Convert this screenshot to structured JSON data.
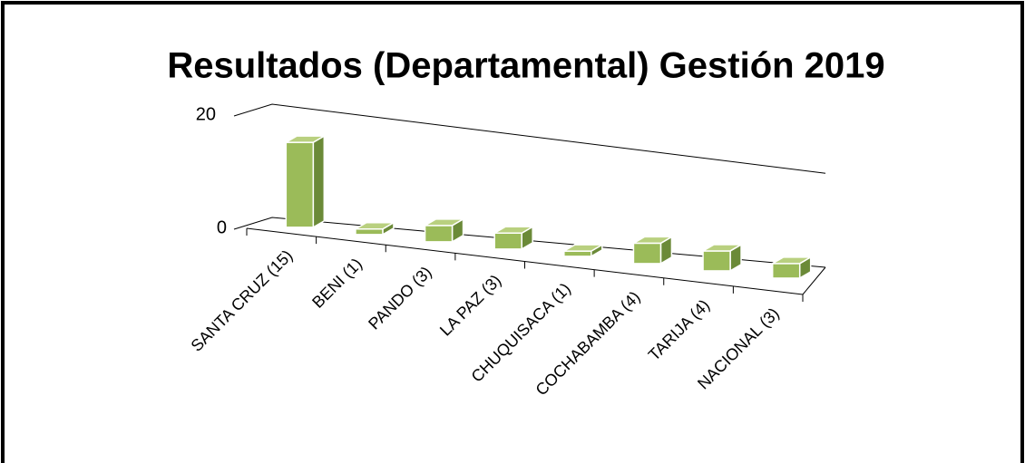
{
  "chart_data": {
    "type": "bar3d",
    "title": "Resultados (Departamental) Gestión 2019",
    "categories": [
      "SANTA CRUZ  (15)",
      "BENI (1)",
      "PANDO (3)",
      "LA PAZ  (3)",
      "CHUQUISACA  (1)",
      "COCHABAMBA (4)",
      "TARIJA  (4)",
      "NACIONAL (3)"
    ],
    "values": [
      15,
      1,
      3,
      3,
      1,
      4,
      4,
      3
    ],
    "color": "#9bbb59",
    "ylim": [
      0,
      20
    ],
    "yticks": [
      0,
      20
    ]
  }
}
